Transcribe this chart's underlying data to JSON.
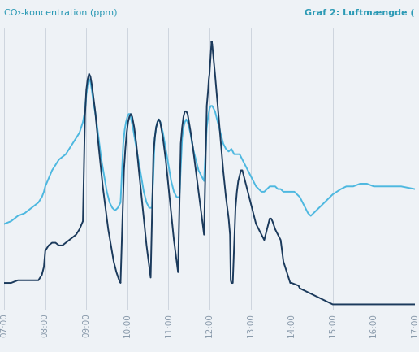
{
  "title_left": "CO₂-koncentration (ppm)",
  "title_right": "Graf 2: Luftmængde (",
  "title_color": "#2b9ab5",
  "bg_color": "#eef2f6",
  "grid_color": "#c8d0da",
  "dark_line_color": "#1b3a5c",
  "light_line_color": "#4db8e0",
  "xlim": [
    0,
    600
  ],
  "ylim": [
    0.0,
    1.05
  ],
  "x_tick_labels": [
    "07:00",
    "08:00",
    "09:00",
    "10:00",
    "11:00",
    "12:00",
    "13:00",
    "14:00",
    "15:00",
    "16:00",
    "17:00"
  ],
  "x_tick_positions": [
    0,
    60,
    120,
    180,
    240,
    300,
    360,
    420,
    480,
    540,
    600
  ],
  "dark_line": [
    [
      0,
      0.1
    ],
    [
      5,
      0.1
    ],
    [
      10,
      0.1
    ],
    [
      20,
      0.11
    ],
    [
      30,
      0.11
    ],
    [
      40,
      0.11
    ],
    [
      50,
      0.11
    ],
    [
      55,
      0.13
    ],
    [
      58,
      0.16
    ],
    [
      60,
      0.22
    ],
    [
      65,
      0.24
    ],
    [
      70,
      0.25
    ],
    [
      75,
      0.25
    ],
    [
      80,
      0.24
    ],
    [
      85,
      0.24
    ],
    [
      90,
      0.25
    ],
    [
      95,
      0.26
    ],
    [
      100,
      0.27
    ],
    [
      105,
      0.28
    ],
    [
      110,
      0.3
    ],
    [
      115,
      0.33
    ],
    [
      118,
      0.72
    ],
    [
      120,
      0.82
    ],
    [
      122,
      0.86
    ],
    [
      124,
      0.88
    ],
    [
      126,
      0.87
    ],
    [
      128,
      0.84
    ],
    [
      130,
      0.8
    ],
    [
      133,
      0.74
    ],
    [
      136,
      0.66
    ],
    [
      140,
      0.56
    ],
    [
      144,
      0.46
    ],
    [
      148,
      0.38
    ],
    [
      152,
      0.3
    ],
    [
      156,
      0.24
    ],
    [
      160,
      0.18
    ],
    [
      164,
      0.14
    ],
    [
      168,
      0.11
    ],
    [
      170,
      0.1
    ],
    [
      175,
      0.52
    ],
    [
      177,
      0.6
    ],
    [
      179,
      0.66
    ],
    [
      181,
      0.7
    ],
    [
      183,
      0.72
    ],
    [
      185,
      0.73
    ],
    [
      187,
      0.72
    ],
    [
      190,
      0.68
    ],
    [
      193,
      0.62
    ],
    [
      196,
      0.54
    ],
    [
      200,
      0.44
    ],
    [
      204,
      0.34
    ],
    [
      208,
      0.24
    ],
    [
      212,
      0.16
    ],
    [
      214,
      0.12
    ],
    [
      218,
      0.58
    ],
    [
      220,
      0.64
    ],
    [
      222,
      0.68
    ],
    [
      224,
      0.7
    ],
    [
      226,
      0.71
    ],
    [
      228,
      0.7
    ],
    [
      232,
      0.64
    ],
    [
      236,
      0.56
    ],
    [
      240,
      0.46
    ],
    [
      244,
      0.36
    ],
    [
      248,
      0.26
    ],
    [
      252,
      0.18
    ],
    [
      254,
      0.14
    ],
    [
      258,
      0.62
    ],
    [
      260,
      0.68
    ],
    [
      262,
      0.72
    ],
    [
      264,
      0.74
    ],
    [
      266,
      0.74
    ],
    [
      268,
      0.73
    ],
    [
      272,
      0.67
    ],
    [
      276,
      0.6
    ],
    [
      280,
      0.52
    ],
    [
      284,
      0.44
    ],
    [
      288,
      0.36
    ],
    [
      292,
      0.28
    ],
    [
      296,
      0.76
    ],
    [
      298,
      0.82
    ],
    [
      299,
      0.86
    ],
    [
      300,
      0.88
    ],
    [
      302,
      0.96
    ],
    [
      303,
      1.0
    ],
    [
      304,
      0.99
    ],
    [
      305,
      0.96
    ],
    [
      308,
      0.88
    ],
    [
      312,
      0.76
    ],
    [
      316,
      0.64
    ],
    [
      320,
      0.52
    ],
    [
      324,
      0.42
    ],
    [
      328,
      0.34
    ],
    [
      330,
      0.28
    ],
    [
      331,
      0.11
    ],
    [
      332,
      0.1
    ],
    [
      334,
      0.1
    ],
    [
      338,
      0.38
    ],
    [
      340,
      0.44
    ],
    [
      342,
      0.48
    ],
    [
      344,
      0.5
    ],
    [
      346,
      0.52
    ],
    [
      348,
      0.52
    ],
    [
      350,
      0.5
    ],
    [
      353,
      0.47
    ],
    [
      356,
      0.44
    ],
    [
      360,
      0.4
    ],
    [
      364,
      0.36
    ],
    [
      368,
      0.32
    ],
    [
      372,
      0.3
    ],
    [
      376,
      0.28
    ],
    [
      380,
      0.26
    ],
    [
      382,
      0.28
    ],
    [
      384,
      0.3
    ],
    [
      386,
      0.32
    ],
    [
      388,
      0.34
    ],
    [
      390,
      0.34
    ],
    [
      392,
      0.33
    ],
    [
      396,
      0.3
    ],
    [
      400,
      0.28
    ],
    [
      404,
      0.26
    ],
    [
      406,
      0.22
    ],
    [
      408,
      0.18
    ],
    [
      418,
      0.1
    ],
    [
      420,
      0.1
    ],
    [
      430,
      0.09
    ],
    [
      432,
      0.08
    ],
    [
      480,
      0.02
    ],
    [
      540,
      0.02
    ],
    [
      600,
      0.02
    ]
  ],
  "light_line": [
    [
      0,
      0.32
    ],
    [
      10,
      0.33
    ],
    [
      20,
      0.35
    ],
    [
      30,
      0.36
    ],
    [
      40,
      0.38
    ],
    [
      50,
      0.4
    ],
    [
      55,
      0.42
    ],
    [
      58,
      0.44
    ],
    [
      60,
      0.46
    ],
    [
      65,
      0.49
    ],
    [
      70,
      0.52
    ],
    [
      75,
      0.54
    ],
    [
      80,
      0.56
    ],
    [
      85,
      0.57
    ],
    [
      90,
      0.58
    ],
    [
      95,
      0.6
    ],
    [
      100,
      0.62
    ],
    [
      105,
      0.64
    ],
    [
      110,
      0.66
    ],
    [
      115,
      0.7
    ],
    [
      118,
      0.74
    ],
    [
      120,
      0.8
    ],
    [
      122,
      0.84
    ],
    [
      124,
      0.86
    ],
    [
      126,
      0.85
    ],
    [
      128,
      0.82
    ],
    [
      130,
      0.78
    ],
    [
      134,
      0.72
    ],
    [
      138,
      0.64
    ],
    [
      142,
      0.56
    ],
    [
      146,
      0.5
    ],
    [
      150,
      0.44
    ],
    [
      154,
      0.4
    ],
    [
      158,
      0.38
    ],
    [
      162,
      0.37
    ],
    [
      166,
      0.38
    ],
    [
      170,
      0.4
    ],
    [
      174,
      0.62
    ],
    [
      176,
      0.67
    ],
    [
      178,
      0.7
    ],
    [
      180,
      0.72
    ],
    [
      182,
      0.73
    ],
    [
      184,
      0.73
    ],
    [
      188,
      0.68
    ],
    [
      192,
      0.62
    ],
    [
      196,
      0.56
    ],
    [
      200,
      0.5
    ],
    [
      204,
      0.44
    ],
    [
      208,
      0.4
    ],
    [
      212,
      0.38
    ],
    [
      216,
      0.38
    ],
    [
      220,
      0.64
    ],
    [
      222,
      0.68
    ],
    [
      224,
      0.7
    ],
    [
      226,
      0.71
    ],
    [
      228,
      0.7
    ],
    [
      232,
      0.66
    ],
    [
      236,
      0.6
    ],
    [
      240,
      0.54
    ],
    [
      244,
      0.48
    ],
    [
      248,
      0.44
    ],
    [
      252,
      0.42
    ],
    [
      256,
      0.42
    ],
    [
      260,
      0.64
    ],
    [
      262,
      0.68
    ],
    [
      264,
      0.7
    ],
    [
      266,
      0.71
    ],
    [
      268,
      0.7
    ],
    [
      272,
      0.66
    ],
    [
      276,
      0.6
    ],
    [
      280,
      0.56
    ],
    [
      284,
      0.52
    ],
    [
      288,
      0.5
    ],
    [
      292,
      0.48
    ],
    [
      296,
      0.68
    ],
    [
      298,
      0.72
    ],
    [
      300,
      0.75
    ],
    [
      302,
      0.76
    ],
    [
      304,
      0.76
    ],
    [
      308,
      0.74
    ],
    [
      312,
      0.7
    ],
    [
      316,
      0.66
    ],
    [
      320,
      0.62
    ],
    [
      324,
      0.6
    ],
    [
      328,
      0.59
    ],
    [
      332,
      0.6
    ],
    [
      336,
      0.58
    ],
    [
      340,
      0.58
    ],
    [
      344,
      0.58
    ],
    [
      348,
      0.56
    ],
    [
      352,
      0.54
    ],
    [
      356,
      0.52
    ],
    [
      360,
      0.5
    ],
    [
      364,
      0.48
    ],
    [
      368,
      0.46
    ],
    [
      372,
      0.45
    ],
    [
      376,
      0.44
    ],
    [
      380,
      0.44
    ],
    [
      384,
      0.45
    ],
    [
      388,
      0.46
    ],
    [
      392,
      0.46
    ],
    [
      396,
      0.46
    ],
    [
      400,
      0.45
    ],
    [
      404,
      0.45
    ],
    [
      408,
      0.44
    ],
    [
      412,
      0.44
    ],
    [
      416,
      0.44
    ],
    [
      420,
      0.44
    ],
    [
      424,
      0.44
    ],
    [
      428,
      0.43
    ],
    [
      432,
      0.42
    ],
    [
      436,
      0.4
    ],
    [
      440,
      0.38
    ],
    [
      444,
      0.36
    ],
    [
      448,
      0.35
    ],
    [
      452,
      0.36
    ],
    [
      456,
      0.37
    ],
    [
      460,
      0.38
    ],
    [
      464,
      0.39
    ],
    [
      468,
      0.4
    ],
    [
      472,
      0.41
    ],
    [
      476,
      0.42
    ],
    [
      480,
      0.43
    ],
    [
      486,
      0.44
    ],
    [
      492,
      0.45
    ],
    [
      500,
      0.46
    ],
    [
      510,
      0.46
    ],
    [
      520,
      0.47
    ],
    [
      530,
      0.47
    ],
    [
      540,
      0.46
    ],
    [
      560,
      0.46
    ],
    [
      580,
      0.46
    ],
    [
      600,
      0.45
    ]
  ]
}
